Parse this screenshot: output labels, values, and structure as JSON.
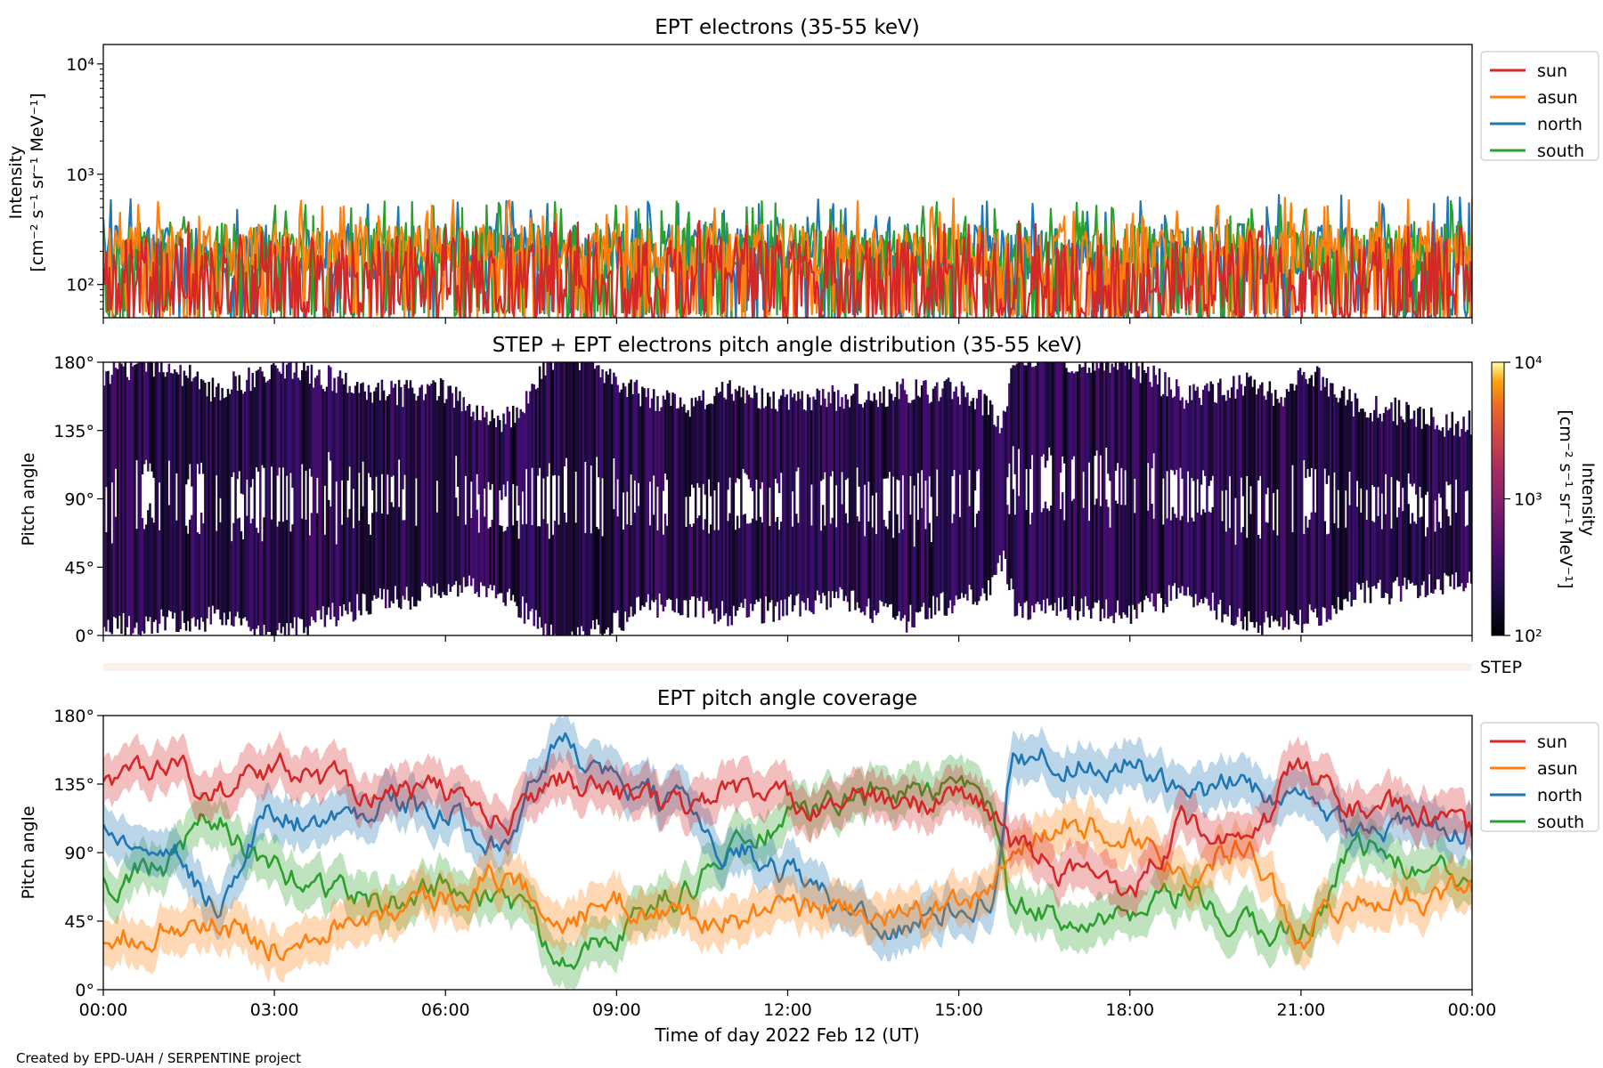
{
  "figure": {
    "credit": "Created by EPD-UAH / SERPENTINE project"
  },
  "colors": {
    "sun": "#d62728",
    "asun": "#ff7f0e",
    "north": "#1f77b4",
    "south": "#2ca02c",
    "step_band": "#fdf0ea"
  },
  "chart_data": [
    {
      "id": "intensity",
      "type": "line",
      "title": "EPT electrons (35-55 keV)",
      "ylabel_line1": "Intensity",
      "ylabel_line2": "[cm⁻² s⁻¹ sr⁻¹ MeV⁻¹]",
      "yscale": "log",
      "ylim": [
        50,
        15000
      ],
      "yticks": [
        {
          "value": 100,
          "label": "10²"
        },
        {
          "value": 1000,
          "label": "10³"
        },
        {
          "value": 10000,
          "label": "10⁴"
        }
      ],
      "xlim_hours": [
        0,
        24
      ],
      "legend_position": "outside-right",
      "series": [
        {
          "name": "sun",
          "color": "#d62728",
          "typical": 120,
          "peak": 380,
          "spread": 0.35
        },
        {
          "name": "asun",
          "color": "#ff7f0e",
          "typical": 200,
          "peak": 620,
          "spread": 0.25
        },
        {
          "name": "north",
          "color": "#1f77b4",
          "typical": 200,
          "peak": 650,
          "spread": 0.25
        },
        {
          "name": "south",
          "color": "#2ca02c",
          "typical": 210,
          "peak": 580,
          "spread": 0.25
        }
      ]
    },
    {
      "id": "pad",
      "type": "heatmap",
      "title": "STEP + EPT electrons pitch angle distribution (35-55 keV)",
      "ylabel": "Pitch angle",
      "ylim": [
        0,
        180
      ],
      "yticks": [
        {
          "value": 0,
          "label": "0°"
        },
        {
          "value": 45,
          "label": "45°"
        },
        {
          "value": 90,
          "label": "90°"
        },
        {
          "value": 135,
          "label": "135°"
        },
        {
          "value": 180,
          "label": "180°"
        }
      ],
      "xlim_hours": [
        0,
        24
      ],
      "colorbar": {
        "label_line1": "Intensity",
        "label_line2": "[cm⁻² s⁻¹ sr⁻¹ MeV⁻¹]",
        "scale": "log",
        "range": [
          100,
          10000
        ],
        "ticks": [
          {
            "value": 100,
            "label": "10²"
          },
          {
            "value": 1000,
            "label": "10³"
          },
          {
            "value": 10000,
            "label": "10⁴"
          }
        ],
        "colormap": "inferno"
      },
      "step_label": "STEP"
    },
    {
      "id": "coverage",
      "type": "line",
      "title": "EPT pitch angle coverage",
      "ylabel": "Pitch angle",
      "xlabel": "Time of day 2022 Feb 12 (UT)",
      "ylim": [
        0,
        180
      ],
      "yticks": [
        {
          "value": 0,
          "label": "0°"
        },
        {
          "value": 45,
          "label": "45°"
        },
        {
          "value": 90,
          "label": "90°"
        },
        {
          "value": 135,
          "label": "135°"
        },
        {
          "value": 180,
          "label": "180°"
        }
      ],
      "xlim_hours": [
        0,
        24
      ],
      "xticks": [
        {
          "value": 0,
          "label": "00:00"
        },
        {
          "value": 3,
          "label": "03:00"
        },
        {
          "value": 6,
          "label": "06:00"
        },
        {
          "value": 9,
          "label": "09:00"
        },
        {
          "value": 12,
          "label": "12:00"
        },
        {
          "value": 15,
          "label": "15:00"
        },
        {
          "value": 18,
          "label": "18:00"
        },
        {
          "value": 21,
          "label": "21:00"
        },
        {
          "value": 24,
          "label": "00:00"
        }
      ],
      "legend_position": "outside-right",
      "band_halfwidth_deg": 15,
      "series": [
        {
          "name": "sun",
          "color": "#d62728",
          "hours": [
            0,
            1,
            2,
            3,
            4,
            5,
            6,
            7,
            8,
            9,
            10,
            11,
            12,
            13,
            14,
            15,
            15.5,
            16,
            17,
            18,
            19,
            20,
            21,
            22,
            23,
            24
          ],
          "values": [
            140,
            148,
            130,
            145,
            138,
            128,
            130,
            110,
            140,
            130,
            118,
            132,
            122,
            126,
            120,
            128,
            120,
            92,
            75,
            70,
            110,
            92,
            145,
            120,
            115,
            100
          ]
        },
        {
          "name": "asun",
          "color": "#ff7f0e",
          "hours": [
            0,
            1,
            2,
            3,
            4,
            5,
            6,
            7,
            8,
            9,
            10,
            11,
            12,
            13,
            14,
            15,
            15.5,
            16,
            17,
            18,
            19,
            20,
            21,
            22,
            23,
            24
          ],
          "values": [
            35,
            40,
            42,
            30,
            45,
            55,
            60,
            75,
            48,
            55,
            50,
            45,
            50,
            55,
            45,
            55,
            62,
            95,
            110,
            100,
            80,
            95,
            40,
            58,
            62,
            65
          ]
        },
        {
          "name": "north",
          "color": "#1f77b4",
          "hours": [
            0,
            1,
            2,
            3,
            4,
            5,
            6,
            7,
            8,
            9,
            10,
            11,
            12,
            13,
            14,
            15,
            15.5,
            16,
            17,
            18,
            19,
            20,
            21,
            22,
            23,
            24
          ],
          "values": [
            110,
            100,
            60,
            115,
            110,
            125,
            112,
            100,
            160,
            135,
            120,
            95,
            80,
            55,
            40,
            55,
            62,
            155,
            150,
            148,
            125,
            135,
            120,
            110,
            105,
            110
          ]
        },
        {
          "name": "south",
          "color": "#2ca02c",
          "hours": [
            0,
            1,
            2,
            3,
            4,
            5,
            6,
            7,
            8,
            9,
            10,
            11,
            12,
            13,
            14,
            15,
            15.5,
            16,
            17,
            18,
            19,
            20,
            21,
            22,
            23,
            24
          ],
          "values": [
            70,
            80,
            110,
            75,
            68,
            55,
            68,
            60,
            25,
            40,
            60,
            90,
            110,
            125,
            130,
            130,
            120,
            50,
            50,
            45,
            60,
            40,
            40,
            95,
            80,
            70
          ]
        }
      ]
    }
  ]
}
